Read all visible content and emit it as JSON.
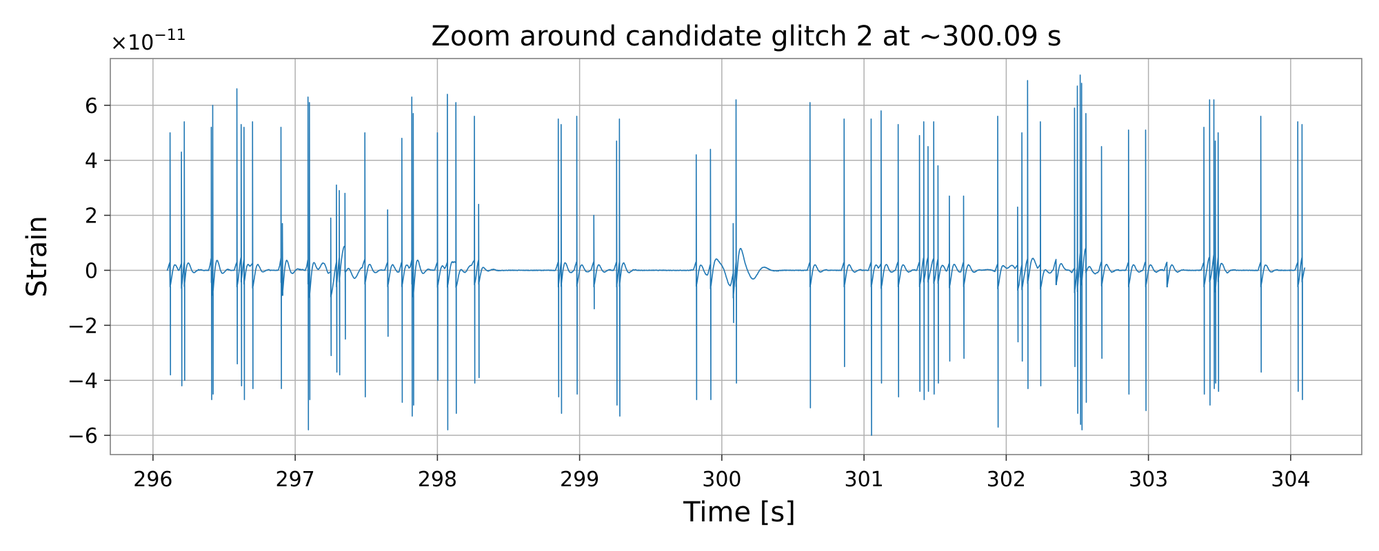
{
  "chart_data": {
    "type": "line",
    "title": "Zoom around candidate glitch 2 at ~300.09 s",
    "xlabel": "Time [s]",
    "ylabel": "Strain",
    "y_exponent_base": "×10",
    "y_exponent_power": "−11",
    "xlim": [
      295.7,
      304.5
    ],
    "ylim": [
      -6.7,
      7.7
    ],
    "xticks": [
      296,
      297,
      298,
      299,
      300,
      301,
      302,
      303,
      304
    ],
    "xtick_labels": [
      "296",
      "297",
      "298",
      "299",
      "300",
      "301",
      "302",
      "303",
      "304"
    ],
    "yticks": [
      -6,
      -4,
      -2,
      0,
      2,
      4,
      6
    ],
    "ytick_labels": [
      "−6",
      "−4",
      "−2",
      "0",
      "2",
      "4",
      "6"
    ],
    "grid": true,
    "line_color": "#1f77b4",
    "glitch_center": 300.09,
    "x_start": 296.1,
    "x_end": 304.1,
    "spikes": [
      [
        296.12,
        5.0,
        -3.8
      ],
      [
        296.2,
        4.3,
        -4.2
      ],
      [
        296.22,
        5.4,
        -4.0
      ],
      [
        296.41,
        5.2,
        -4.7
      ],
      [
        296.42,
        6.0,
        -4.5
      ],
      [
        296.59,
        6.6,
        -3.4
      ],
      [
        296.62,
        5.3,
        -4.2
      ],
      [
        296.64,
        5.2,
        -4.7
      ],
      [
        296.7,
        5.4,
        -4.3
      ],
      [
        296.9,
        5.2,
        -4.3
      ],
      [
        296.91,
        1.7,
        -0.8
      ],
      [
        297.09,
        6.3,
        -5.8
      ],
      [
        297.1,
        6.1,
        -4.7
      ],
      [
        297.25,
        1.9,
        -3.1
      ],
      [
        297.29,
        3.1,
        -3.7
      ],
      [
        297.31,
        2.9,
        -3.8
      ],
      [
        297.35,
        2.8,
        -2.5
      ],
      [
        297.49,
        5.0,
        -4.6
      ],
      [
        297.65,
        2.2,
        -2.4
      ],
      [
        297.75,
        4.8,
        -4.8
      ],
      [
        297.82,
        6.3,
        -5.3
      ],
      [
        297.83,
        5.7,
        -4.9
      ],
      [
        298.0,
        5.0,
        -4.0
      ],
      [
        298.07,
        6.4,
        -5.8
      ],
      [
        298.13,
        6.1,
        -5.2
      ],
      [
        298.26,
        5.6,
        -4.1
      ],
      [
        298.29,
        2.4,
        -3.9
      ],
      [
        298.85,
        5.5,
        -4.6
      ],
      [
        298.87,
        5.3,
        -5.2
      ],
      [
        298.98,
        5.6,
        -4.5
      ],
      [
        299.1,
        2.0,
        -1.4
      ],
      [
        299.26,
        4.7,
        -4.9
      ],
      [
        299.28,
        5.5,
        -5.3
      ],
      [
        299.82,
        4.2,
        -4.7
      ],
      [
        299.92,
        4.4,
        -4.7
      ],
      [
        300.08,
        1.7,
        -1.9
      ],
      [
        300.1,
        6.2,
        -4.1
      ],
      [
        300.62,
        6.1,
        -5.0
      ],
      [
        300.86,
        5.5,
        -3.5
      ],
      [
        301.05,
        5.5,
        -6.0
      ],
      [
        301.12,
        5.8,
        -4.1
      ],
      [
        301.24,
        5.3,
        -4.6
      ],
      [
        301.39,
        4.9,
        -4.4
      ],
      [
        301.42,
        5.4,
        -4.7
      ],
      [
        301.45,
        4.5,
        -4.4
      ],
      [
        301.49,
        5.4,
        -4.5
      ],
      [
        301.52,
        3.8,
        -4.1
      ],
      [
        301.6,
        2.7,
        -3.3
      ],
      [
        301.7,
        2.7,
        -3.2
      ],
      [
        301.94,
        5.6,
        -5.7
      ],
      [
        302.08,
        2.3,
        -2.6
      ],
      [
        302.11,
        5.0,
        -3.3
      ],
      [
        302.15,
        6.9,
        -4.3
      ],
      [
        302.24,
        5.4,
        -4.2
      ],
      [
        302.35,
        0.4,
        -0.3
      ],
      [
        302.48,
        5.9,
        -3.5
      ],
      [
        302.5,
        6.7,
        -5.2
      ],
      [
        302.52,
        7.1,
        -5.6
      ],
      [
        302.53,
        6.8,
        -5.8
      ],
      [
        302.56,
        5.7,
        -4.8
      ],
      [
        302.67,
        4.5,
        -3.2
      ],
      [
        302.86,
        5.1,
        -4.5
      ],
      [
        302.98,
        5.1,
        -5.1
      ],
      [
        303.13,
        0.2,
        -0.2
      ],
      [
        303.39,
        5.2,
        -4.5
      ],
      [
        303.43,
        6.2,
        -4.9
      ],
      [
        303.46,
        6.2,
        -4.3
      ],
      [
        303.47,
        4.7,
        -4.1
      ],
      [
        303.49,
        5.0,
        -4.4
      ],
      [
        303.79,
        5.6,
        -3.7
      ],
      [
        304.05,
        5.4,
        -4.4
      ],
      [
        304.08,
        5.3,
        -4.7
      ]
    ],
    "oscillations": [
      [
        297.3,
        0.45,
        0.22,
        6.5
      ],
      [
        298.2,
        0.18,
        0.2,
        7.0
      ],
      [
        300.1,
        0.6,
        0.22,
        6.0
      ],
      [
        302.15,
        0.3,
        0.25,
        6.0
      ],
      [
        302.52,
        0.25,
        0.15,
        7.0
      ]
    ]
  }
}
